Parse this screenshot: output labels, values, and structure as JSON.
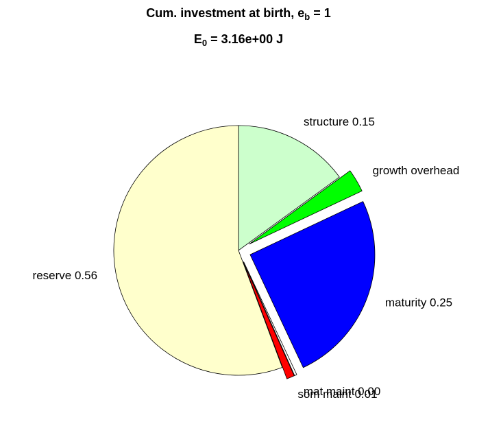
{
  "chart_data": {
    "type": "pie",
    "title_parts": [
      "Cum. investment at birth, e",
      "b",
      " = 1"
    ],
    "subtitle_parts": [
      "E",
      "0",
      " = 3.16e+00 J"
    ],
    "categories": [
      "structure 0.15",
      "growth overhead",
      "maturity 0.25",
      "mat maint 0.00",
      "som maint 0.01",
      "reserve 0.56"
    ],
    "values": [
      0.15,
      0.03,
      0.25,
      0.003,
      0.01,
      0.557
    ],
    "colors": [
      "#ccffcc",
      "#00ff00",
      "#0000ff",
      "#ffffff",
      "#ff0000",
      "#ffffcc"
    ],
    "explode": [
      false,
      true,
      true,
      true,
      true,
      false
    ]
  }
}
